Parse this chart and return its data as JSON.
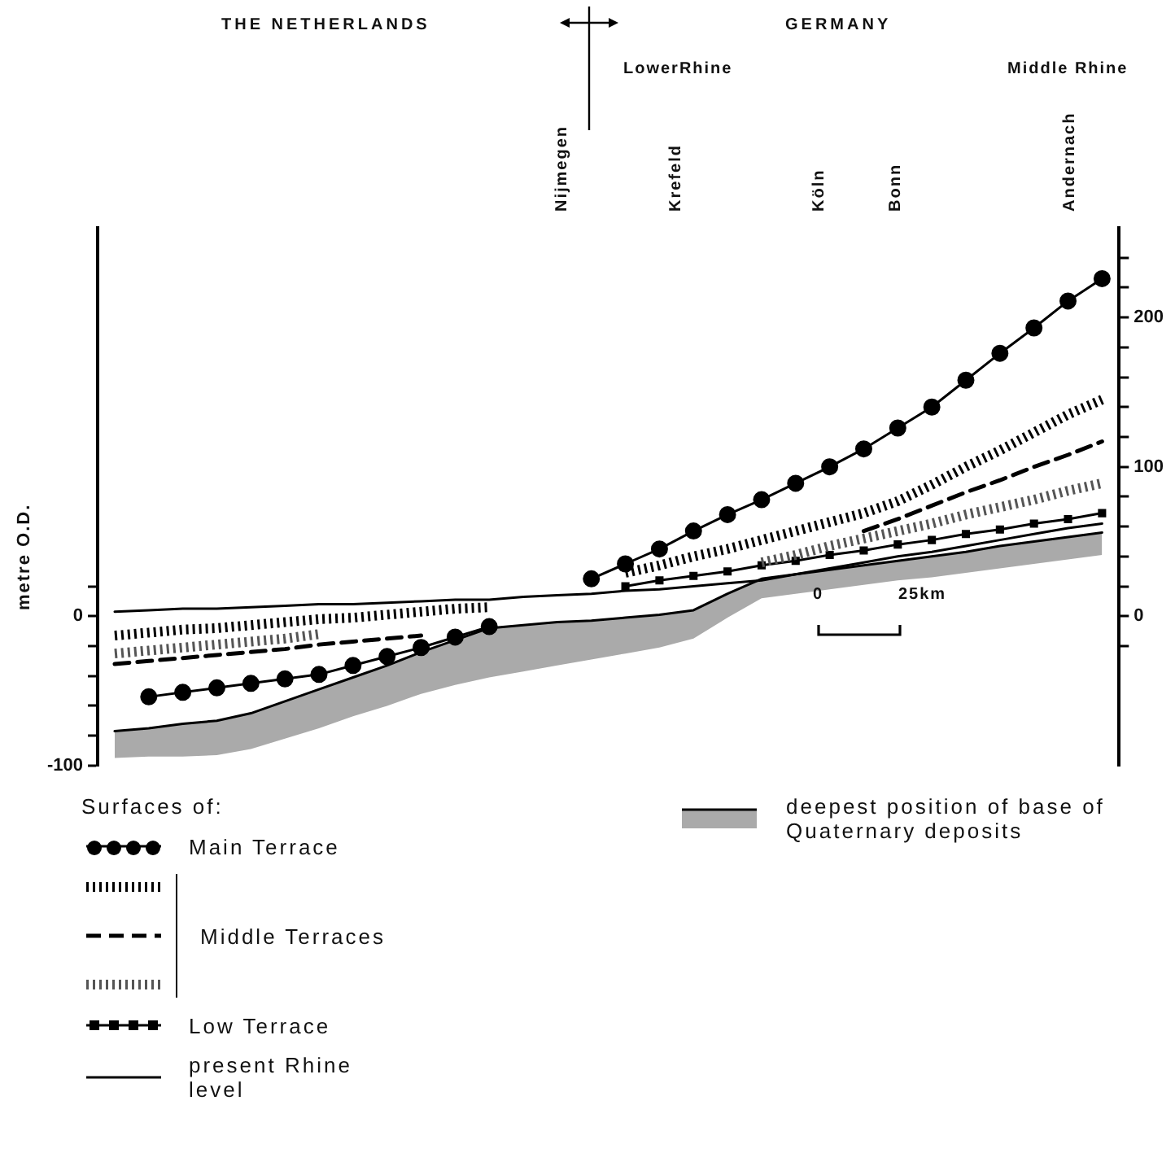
{
  "chart_data": {
    "type": "line",
    "ylabel": "metre O.D.",
    "legend_title": "Surfaces of:",
    "categories": [
      null,
      null,
      null,
      null,
      null,
      null,
      null,
      null,
      null,
      null,
      null,
      null,
      null,
      null,
      null,
      null,
      null,
      null,
      null,
      null,
      null,
      null,
      null,
      null,
      null,
      null,
      null,
      null,
      null,
      null
    ],
    "ylim": [
      -100,
      260
    ],
    "yticks": [
      -100,
      {
        "value": -80,
        "label": null
      },
      {
        "value": -60,
        "label": null
      },
      {
        "value": -40,
        "label": null
      },
      {
        "value": -20,
        "label": null
      },
      0,
      {
        "value": 20,
        "label": null
      }
    ],
    "y2lim": [
      -100,
      260
    ],
    "y2ticks": [
      {
        "value": -20,
        "label": null
      },
      0,
      {
        "value": 20,
        "label": null
      },
      {
        "value": 40,
        "label": null
      },
      {
        "value": 60,
        "label": null
      },
      {
        "value": 80,
        "label": null
      },
      100,
      {
        "value": 120,
        "label": null
      },
      {
        "value": 140,
        "label": null
      },
      {
        "value": 160,
        "label": null
      },
      {
        "value": 180,
        "label": null
      },
      200,
      {
        "value": 220,
        "label": null
      },
      {
        "value": 240,
        "label": null
      }
    ],
    "tick_labels": "y",
    "grid": false,
    "legend": "bottom",
    "annotations": [
      "THE NETHERLANDS",
      "GERMANY",
      "LowerRhine",
      "Middle Rhine",
      "Nijmegen",
      "Krefeld",
      "Köln",
      "Bonn",
      "Andernach",
      "0",
      "25km"
    ],
    "series": [
      {
        "name": "Main Terrace",
        "color": "#000000",
        "marker": "circle",
        "line_style": "solid",
        "values": [
          null,
          -54,
          -51,
          -48,
          -45,
          -42,
          -39,
          -33,
          -27,
          -21,
          -14,
          -7,
          null,
          null,
          25,
          35,
          45,
          57,
          68,
          78,
          89,
          100,
          112,
          126,
          140,
          158,
          176,
          193,
          211,
          226
        ]
      },
      {
        "name": "Middle Terraces",
        "color": "#000000",
        "marker": "none",
        "line_style": "dotted",
        "values": [
          -13,
          -11,
          -9,
          -8,
          -6,
          -4,
          -2,
          -1,
          1,
          3,
          5,
          6,
          null,
          null,
          null,
          29,
          34,
          40,
          45,
          51,
          57,
          63,
          69,
          77,
          88,
          100,
          111,
          123,
          135,
          145
        ]
      },
      {
        "color": "#000000",
        "marker": "none",
        "line_style": "dashed",
        "values": [
          -32,
          -30,
          -28,
          -26,
          -24,
          -22,
          -19,
          -17,
          -15,
          -13,
          null,
          null,
          null,
          null,
          null,
          null,
          null,
          null,
          null,
          null,
          null,
          null,
          57,
          65,
          74,
          83,
          91,
          100,
          108,
          117
        ]
      },
      {
        "color": "#555555",
        "marker": "none",
        "line_style": "dotted",
        "values": [
          -25,
          -23,
          -21,
          -19,
          -17,
          -15,
          -12,
          null,
          null,
          null,
          null,
          null,
          null,
          null,
          null,
          null,
          null,
          null,
          null,
          36,
          41,
          47,
          52,
          57,
          62,
          68,
          73,
          78,
          84,
          89
        ]
      },
      {
        "name": "Low Terrace",
        "color": "#000000",
        "marker": "square",
        "line_style": "solid",
        "values": [
          null,
          null,
          null,
          null,
          null,
          null,
          null,
          null,
          null,
          null,
          null,
          null,
          null,
          null,
          null,
          20,
          24,
          27,
          30,
          34,
          37,
          41,
          44,
          48,
          51,
          55,
          58,
          62,
          65,
          69
        ]
      },
      {
        "name": "present Rhine level",
        "color": "#000000",
        "marker": "none",
        "line_style": "solid",
        "values": [
          3,
          4,
          5,
          5,
          6,
          7,
          8,
          8,
          9,
          10,
          11,
          11,
          13,
          14,
          15,
          17,
          18,
          20,
          22,
          24,
          28,
          32,
          36,
          40,
          43,
          47,
          51,
          55,
          59,
          62
        ]
      },
      {
        "name": "deepest position of base of Quaternary deposits",
        "color": "#000000",
        "marker": "none",
        "line_style": "solid",
        "values": [
          -77,
          -75,
          -72,
          -70,
          -65,
          -57,
          -49,
          -41,
          -33,
          -24,
          -16,
          -8,
          -6,
          -4,
          -3,
          -1,
          1,
          4,
          15,
          25,
          28,
          31,
          34,
          37,
          40,
          43,
          47,
          50,
          53,
          56
        ],
        "upper": [
          -77,
          -75,
          -72,
          -70,
          -65,
          -57,
          -49,
          -41,
          -33,
          -24,
          -16,
          -8,
          -6,
          -4,
          -3,
          -1,
          1,
          4,
          15,
          25,
          28,
          31,
          34,
          37,
          40,
          43,
          47,
          50,
          53,
          56
        ],
        "lower": [
          -95,
          -94,
          -94,
          -93,
          -89,
          -82,
          -75,
          -67,
          -60,
          -52,
          -46,
          -41,
          -37,
          -33,
          -29,
          -25,
          -21,
          -15,
          -1,
          12,
          15,
          18,
          21,
          24,
          26,
          29,
          32,
          35,
          38,
          41
        ]
      }
    ]
  }
}
